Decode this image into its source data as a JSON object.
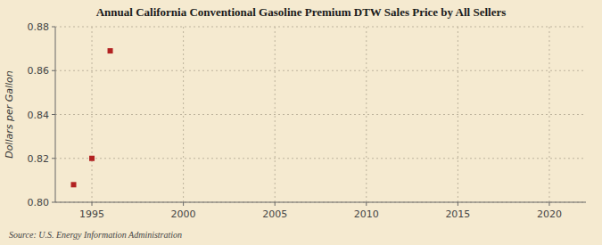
{
  "chart_data": {
    "type": "scatter",
    "title": "Annual California Conventional Gasoline Premium DTW Sales Price by All Sellers",
    "y_label": "Dollars per Gallon",
    "annotations": [
      "Source: U.S. Energy Information Administration"
    ],
    "x": [
      1994,
      1995,
      1996
    ],
    "values": [
      0.808,
      0.82,
      0.869
    ],
    "color": "#b22222",
    "marker": "square",
    "xlim": [
      1993,
      2022
    ],
    "ylim": [
      0.8,
      0.88
    ],
    "xticks": [
      1995,
      2000,
      2005,
      2010,
      2015,
      2020
    ],
    "yticks": [
      {
        "value": 0.8,
        "label": "0.80"
      },
      0.82,
      0.84,
      0.86,
      0.88
    ],
    "grid": true
  }
}
